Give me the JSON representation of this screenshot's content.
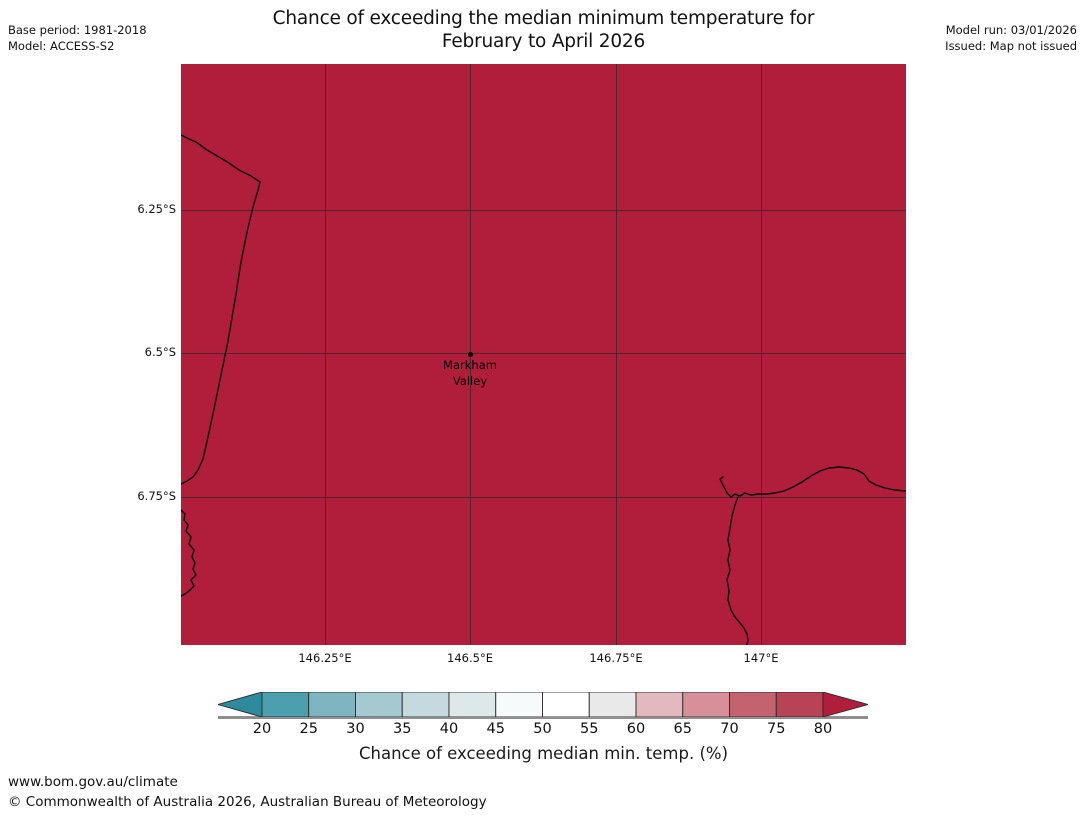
{
  "header": {
    "title_line1": "Chance of exceeding the median minimum temperature for",
    "title_line2": "February to April 2026",
    "base_period": "Base period: 1981-2018",
    "model": "Model: ACCESS-S2",
    "model_run": "Model run: 03/01/2026",
    "issued": "Issued: Map not issued"
  },
  "map": {
    "fill_color": "#b11e3b",
    "coastline_color": "#060606",
    "grid_color": "rgba(40,40,40,0.72)",
    "lat_labels": [
      "6.25°S",
      "6.5°S",
      "6.75°S"
    ],
    "lon_labels": [
      "146.25°E",
      "146.5°E",
      "146.75°E",
      "147°E"
    ],
    "marker": {
      "line1": "Markham",
      "line2": "Valley"
    }
  },
  "colorbar": {
    "caption": "Chance of exceeding median min. temp. (%)",
    "ticks": [
      "20",
      "25",
      "30",
      "35",
      "40",
      "45",
      "50",
      "55",
      "60",
      "65",
      "70",
      "75",
      "80"
    ],
    "left_arrow_color": "#2e8b9d",
    "right_arrow_color": "#b11e3b",
    "segment_colors": [
      "#4c9fae",
      "#7eb5c1",
      "#a4c9d0",
      "#c4dade",
      "#dce8ea",
      "#f7fafa",
      "#ffffff",
      "#e9e9e9",
      "#e2b9bf",
      "#d78f99",
      "#c5626f",
      "#b84355"
    ],
    "outline_color": "#2a2a2a"
  },
  "footer": {
    "url": "www.bom.gov.au/climate",
    "copyright": "© Commonwealth of Australia 2026, Australian Bureau of Meteorology"
  }
}
